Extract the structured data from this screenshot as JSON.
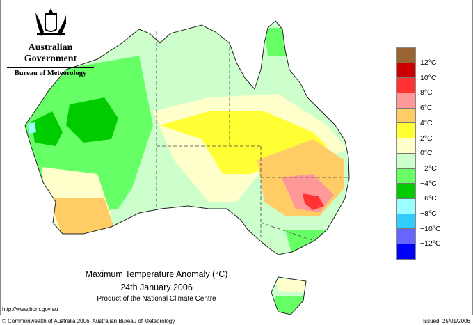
{
  "header": {
    "government": "Australian Government",
    "bureau": "Bureau of Meteorology"
  },
  "title": {
    "main": "Maximum Temperature Anomaly (°C)",
    "date": "24th January 2006",
    "product": "Product of the National Climate Centre"
  },
  "footer": {
    "url": "http://www.bom.gov.au",
    "copyright": "© Commonwealth of Australia 2006, Australian Bureau of Meteorology",
    "issued": "Issued: 25/01/2006"
  },
  "legend": {
    "colors": [
      "#996633",
      "#cc0000",
      "#ff3333",
      "#ff9999",
      "#ffcc66",
      "#ffff33",
      "#ffffcc",
      "#ccffcc",
      "#66ff66",
      "#00cc00",
      "#99ffff",
      "#33ccff",
      "#6666ff",
      "#0000ff"
    ],
    "labels": [
      "12°C",
      "10°C",
      "8°C",
      "6°C",
      "4°C",
      "2°C",
      "0°C",
      "−2°C",
      "−4°C",
      "−6°C",
      "−8°C",
      "−10°C",
      "−12°C"
    ]
  }
}
